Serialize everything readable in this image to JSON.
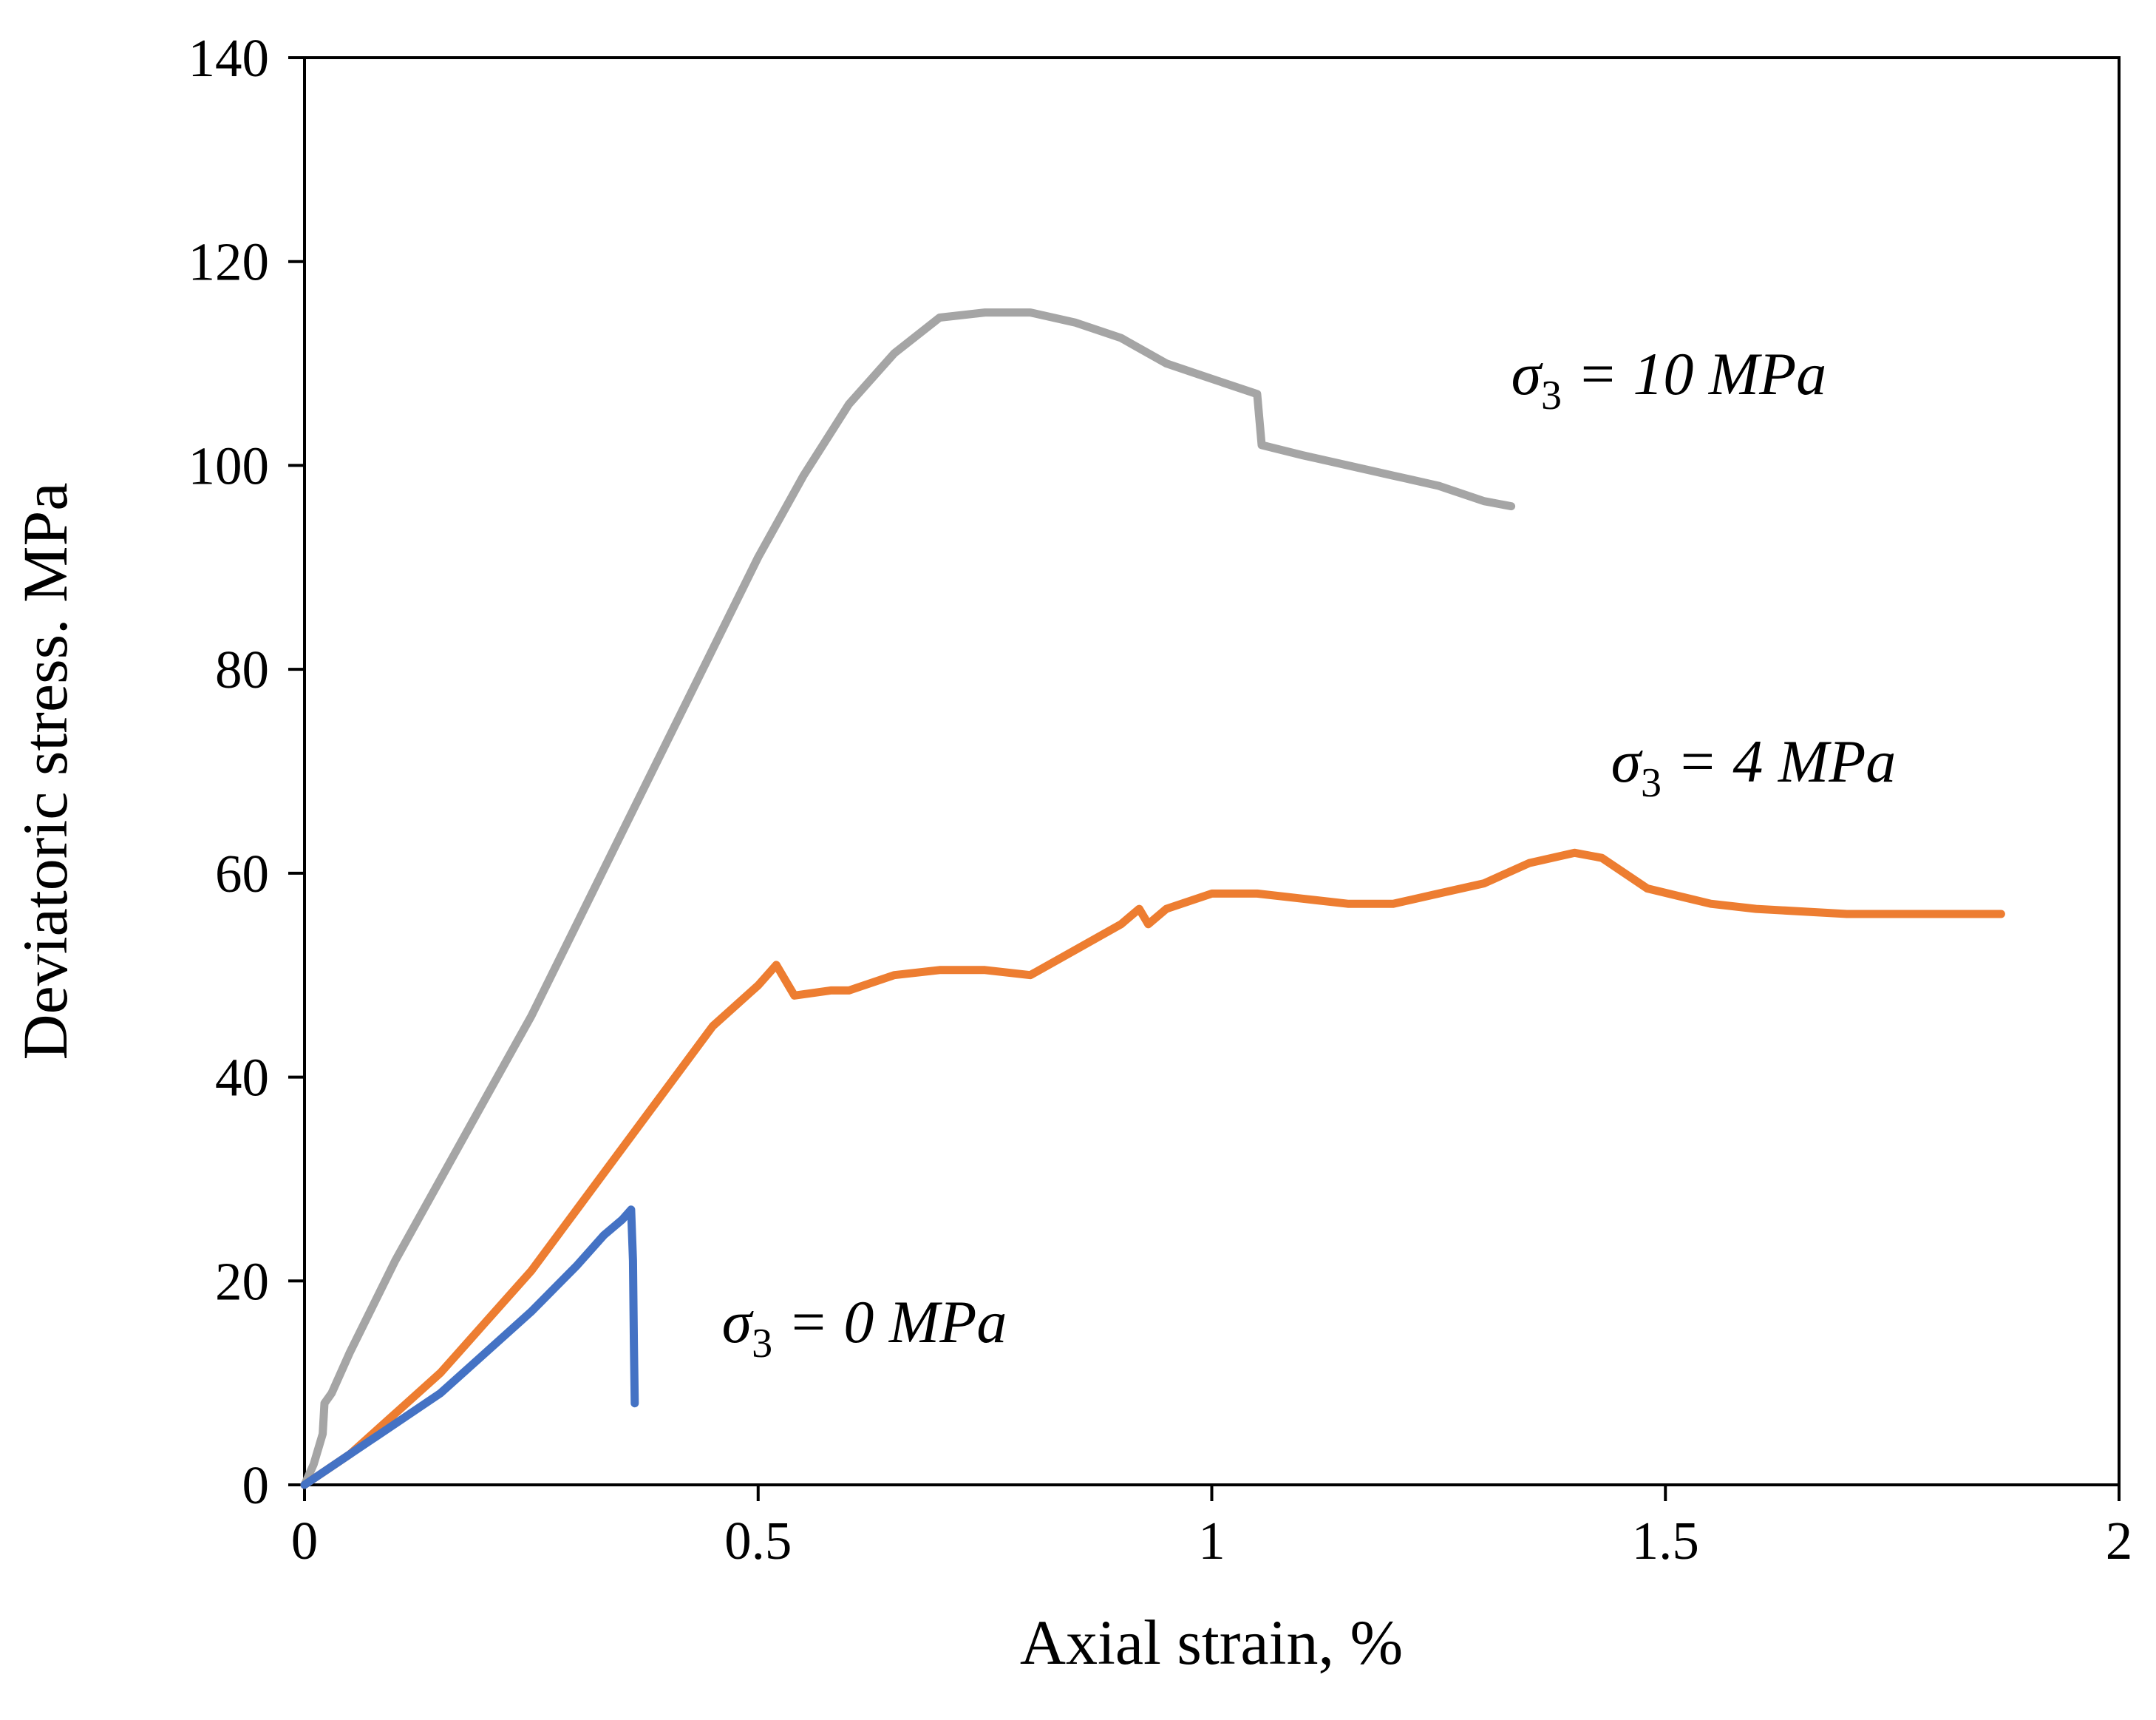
{
  "chart_data": {
    "type": "line",
    "xlabel": "Axial strain, %",
    "ylabel": "Deviatoric stress. MPa",
    "xlim": [
      0,
      2
    ],
    "ylim": [
      0,
      140
    ],
    "xticks": [
      0,
      0.5,
      1,
      1.5,
      2
    ],
    "xtick_labels": [
      "0",
      "0.5",
      "1",
      "1.5",
      "2"
    ],
    "yticks": [
      0,
      20,
      40,
      60,
      80,
      100,
      120,
      140
    ],
    "ytick_labels": [
      "0",
      "20",
      "40",
      "60",
      "80",
      "100",
      "120",
      "140"
    ],
    "grid": false,
    "legend": "none",
    "series": [
      {
        "color": "#A5A5A5",
        "points": [
          [
            0,
            0
          ],
          [
            0.01,
            2
          ],
          [
            0.02,
            5
          ],
          [
            0.022,
            8
          ],
          [
            0.03,
            9
          ],
          [
            0.05,
            13
          ],
          [
            0.1,
            22
          ],
          [
            0.15,
            30
          ],
          [
            0.2,
            38
          ],
          [
            0.25,
            46
          ],
          [
            0.3,
            55
          ],
          [
            0.35,
            64
          ],
          [
            0.4,
            73
          ],
          [
            0.45,
            82
          ],
          [
            0.5,
            91
          ],
          [
            0.55,
            99
          ],
          [
            0.6,
            106
          ],
          [
            0.65,
            111
          ],
          [
            0.7,
            114.5
          ],
          [
            0.75,
            115
          ],
          [
            0.8,
            115
          ],
          [
            0.85,
            114
          ],
          [
            0.9,
            112.5
          ],
          [
            0.95,
            110
          ],
          [
            1.0,
            108.5
          ],
          [
            1.05,
            107
          ],
          [
            1.055,
            102
          ],
          [
            1.1,
            101
          ],
          [
            1.15,
            100
          ],
          [
            1.2,
            99
          ],
          [
            1.25,
            98
          ],
          [
            1.3,
            96.5
          ],
          [
            1.33,
            96
          ]
        ]
      },
      {
        "color": "#ED7D31",
        "points": [
          [
            0,
            0
          ],
          [
            0.05,
            3
          ],
          [
            0.1,
            7
          ],
          [
            0.15,
            11
          ],
          [
            0.2,
            16
          ],
          [
            0.25,
            21
          ],
          [
            0.3,
            27
          ],
          [
            0.35,
            33
          ],
          [
            0.4,
            39
          ],
          [
            0.45,
            45
          ],
          [
            0.5,
            49
          ],
          [
            0.52,
            51
          ],
          [
            0.54,
            48
          ],
          [
            0.58,
            48.5
          ],
          [
            0.6,
            48.5
          ],
          [
            0.65,
            50
          ],
          [
            0.7,
            50.5
          ],
          [
            0.75,
            50.5
          ],
          [
            0.8,
            50
          ],
          [
            0.85,
            52.5
          ],
          [
            0.9,
            55
          ],
          [
            0.92,
            56.5
          ],
          [
            0.93,
            55
          ],
          [
            0.95,
            56.5
          ],
          [
            1.0,
            58
          ],
          [
            1.05,
            58
          ],
          [
            1.1,
            57.5
          ],
          [
            1.15,
            57
          ],
          [
            1.2,
            57
          ],
          [
            1.25,
            58
          ],
          [
            1.3,
            59
          ],
          [
            1.35,
            61
          ],
          [
            1.4,
            62
          ],
          [
            1.43,
            61.5
          ],
          [
            1.48,
            58.5
          ],
          [
            1.55,
            57
          ],
          [
            1.6,
            56.5
          ],
          [
            1.7,
            56
          ],
          [
            1.8,
            56
          ],
          [
            1.87,
            56
          ]
        ]
      },
      {
        "color": "#4472C4",
        "points": [
          [
            0,
            0
          ],
          [
            0.05,
            3
          ],
          [
            0.1,
            6
          ],
          [
            0.15,
            9
          ],
          [
            0.2,
            13
          ],
          [
            0.25,
            17
          ],
          [
            0.3,
            21.5
          ],
          [
            0.33,
            24.5
          ],
          [
            0.35,
            26
          ],
          [
            0.36,
            27
          ],
          [
            0.362,
            22
          ],
          [
            0.363,
            14
          ],
          [
            0.364,
            8
          ]
        ]
      }
    ],
    "annotations": [
      {
        "base": "σ",
        "sub": "3",
        "rest": " = 10 MPa",
        "x": 1.33,
        "y": 107
      },
      {
        "base": "σ",
        "sub": "3",
        "rest": " = 4 MPa",
        "x": 1.44,
        "y": 69
      },
      {
        "base": "σ",
        "sub": "3",
        "rest": " = 0 MPa",
        "x": 0.46,
        "y": 14
      }
    ]
  }
}
